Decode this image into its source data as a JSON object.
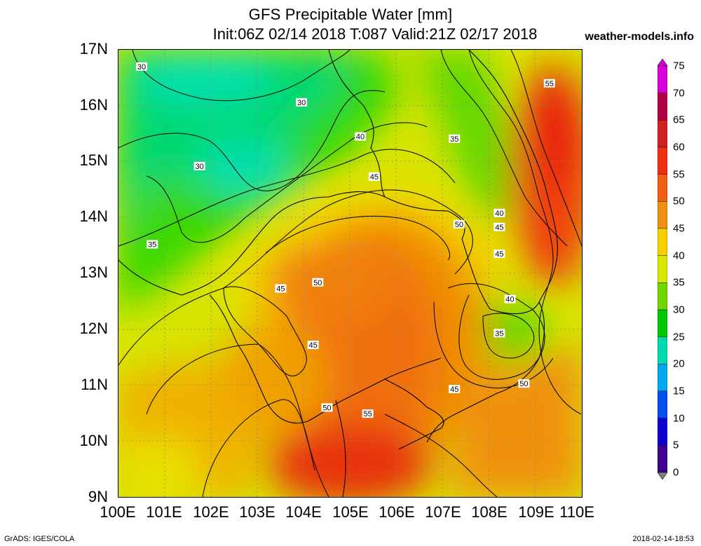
{
  "header": {
    "title": "GFS Precipitable Water [mm]",
    "subtitle": "Init:06Z 02/14 2018 T:087 Valid:21Z 02/17 2018",
    "site": "weather-models.info"
  },
  "axes": {
    "lat_labels": [
      "17N",
      "16N",
      "15N",
      "14N",
      "13N",
      "12N",
      "11N",
      "10N",
      "9N"
    ],
    "lon_labels": [
      "100E",
      "101E",
      "102E",
      "103E",
      "104E",
      "105E",
      "106E",
      "107E",
      "108E",
      "109E",
      "110E"
    ]
  },
  "colorbar": {
    "labels": [
      "75",
      "70",
      "65",
      "60",
      "55",
      "50",
      "45",
      "40",
      "35",
      "30",
      "25",
      "20",
      "15",
      "10",
      "5",
      "0"
    ],
    "colors": [
      "#d800d8",
      "#b0004a",
      "#d02020",
      "#f03010",
      "#f06010",
      "#f09010",
      "#f8d000",
      "#d8e800",
      "#70d800",
      "#00c800",
      "#00d8b0",
      "#00a8f0",
      "#0050f0",
      "#1000d0",
      "#400090",
      "#808080"
    ]
  },
  "contour_labels": [
    {
      "text": "30",
      "lon": 100.5,
      "lat": 16.7
    },
    {
      "text": "30",
      "lon": 103.95,
      "lat": 16.06
    },
    {
      "text": "30",
      "lon": 101.75,
      "lat": 14.92
    },
    {
      "text": "35",
      "lon": 100.73,
      "lat": 13.52
    },
    {
      "text": "35",
      "lon": 107.25,
      "lat": 15.41
    },
    {
      "text": "40",
      "lon": 105.22,
      "lat": 15.45
    },
    {
      "text": "40",
      "lon": 108.22,
      "lat": 14.08
    },
    {
      "text": "40",
      "lon": 108.45,
      "lat": 12.54
    },
    {
      "text": "35",
      "lon": 108.22,
      "lat": 11.93
    },
    {
      "text": "45",
      "lon": 105.52,
      "lat": 14.73
    },
    {
      "text": "45",
      "lon": 108.22,
      "lat": 13.83
    },
    {
      "text": "45",
      "lon": 108.22,
      "lat": 13.35
    },
    {
      "text": "45",
      "lon": 103.5,
      "lat": 12.73
    },
    {
      "text": "45",
      "lon": 104.2,
      "lat": 11.72
    },
    {
      "text": "45",
      "lon": 107.25,
      "lat": 10.93
    },
    {
      "text": "50",
      "lon": 104.3,
      "lat": 12.84
    },
    {
      "text": "50",
      "lon": 107.35,
      "lat": 13.88
    },
    {
      "text": "50",
      "lon": 104.5,
      "lat": 10.6
    },
    {
      "text": "50",
      "lon": 108.75,
      "lat": 11.03
    },
    {
      "text": "55",
      "lon": 105.38,
      "lat": 10.49
    },
    {
      "text": "55",
      "lon": 109.3,
      "lat": 16.4
    }
  ],
  "footer": {
    "left": "GrADS: IGES/COLA",
    "right": "2018-02-14-18:53"
  }
}
